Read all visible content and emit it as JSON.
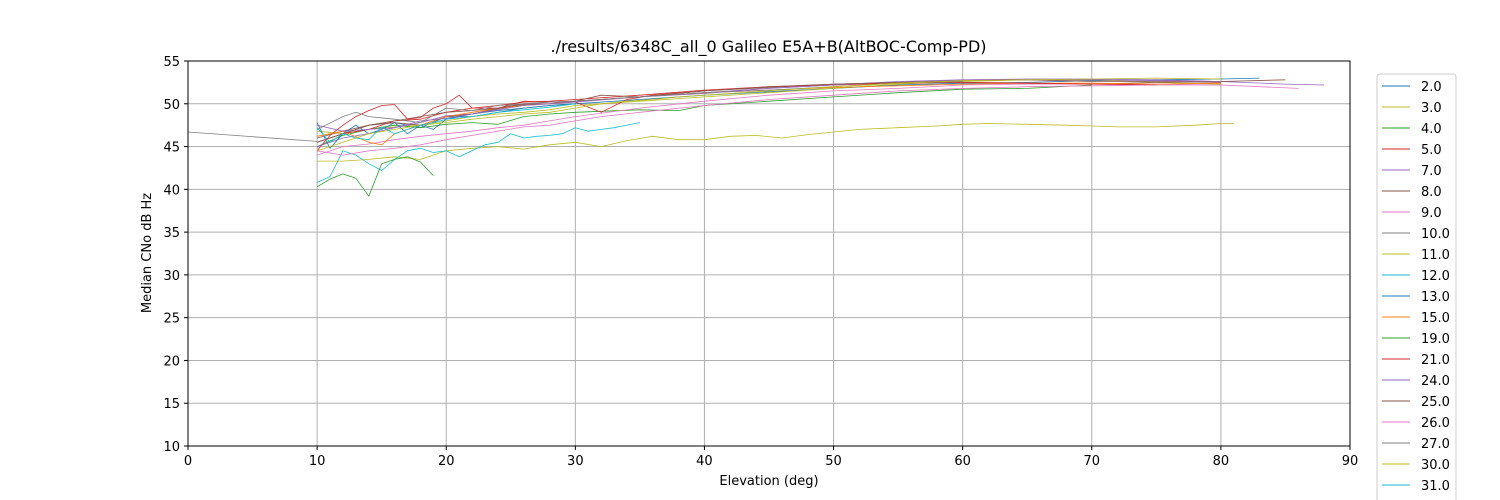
{
  "chart_data": {
    "type": "line",
    "title": "./results/6348C_all_0 Galileo E5A+B(AltBOC-Comp-PD)",
    "xlabel": "Elevation (deg)",
    "ylabel": "Median CNo dB Hz",
    "xlim": [
      0,
      90
    ],
    "ylim": [
      10,
      55
    ],
    "xticks": [
      "0",
      "10",
      "20",
      "30",
      "40",
      "50",
      "60",
      "70",
      "80",
      "90"
    ],
    "yticks": [
      "10",
      "15",
      "20",
      "25",
      "30",
      "35",
      "40",
      "45",
      "50",
      "55"
    ],
    "grid": true,
    "legend_position": "right",
    "series": [
      {
        "name": "2.0",
        "color": "#1f77b4",
        "x": [
          10,
          12,
          14,
          16,
          18,
          20,
          22,
          24,
          26,
          28,
          30,
          35,
          40,
          45,
          50,
          55,
          60,
          65,
          70,
          75,
          80,
          83
        ],
        "y": [
          45.5,
          46.5,
          47.5,
          47.8,
          47.2,
          48.5,
          48.5,
          49,
          49.5,
          49.8,
          50,
          50.5,
          51,
          51.4,
          51.8,
          52.2,
          52.4,
          52.5,
          52.7,
          52.8,
          52.9,
          53
        ]
      },
      {
        "name": "3.0",
        "color": "#bcbd22",
        "x": [
          10,
          12,
          14,
          16,
          18,
          20,
          22,
          24,
          26,
          28,
          30,
          35,
          40,
          45,
          50,
          55,
          60,
          65,
          70,
          75,
          80
        ],
        "y": [
          46.8,
          46.5,
          47,
          47.3,
          47.5,
          48,
          48.5,
          48.8,
          49,
          49.3,
          49.8,
          50.3,
          50.8,
          51.3,
          51.8,
          52.3,
          52.6,
          52.8,
          52.8,
          52.5,
          52.3
        ]
      },
      {
        "name": "4.0",
        "color": "#2ca02c",
        "x": [
          10,
          12,
          14,
          16,
          18,
          20,
          22,
          24,
          26,
          28,
          30,
          35,
          38,
          40,
          45,
          50,
          55,
          60,
          65,
          70
        ],
        "y": [
          45,
          46.3,
          47,
          47.5,
          47.2,
          47.6,
          47.8,
          47.6,
          48.5,
          48.8,
          49,
          49.3,
          49.2,
          49.8,
          50.3,
          50.8,
          51.3,
          51.7,
          51.8,
          52.2
        ]
      },
      {
        "name": "5.0",
        "color": "#d62728",
        "x": [
          10,
          11,
          12,
          13,
          14,
          15,
          16,
          17,
          18,
          19,
          20,
          21,
          22,
          24,
          26,
          28,
          30,
          32,
          34,
          36,
          40
        ],
        "y": [
          44.5,
          46.3,
          47.5,
          48.5,
          49.2,
          49.8,
          49.9,
          48.2,
          48.4,
          49.5,
          50,
          51,
          49.5,
          49.5,
          50.3,
          50.2,
          50.2,
          49,
          50.5,
          51,
          51.5
        ]
      },
      {
        "name": "7.0",
        "color": "#9467bd",
        "x": [
          10,
          12,
          14,
          16,
          18,
          20,
          22,
          24,
          26,
          28,
          30,
          35,
          40,
          45,
          50,
          55,
          60,
          65,
          70,
          75,
          80,
          85,
          88
        ],
        "y": [
          45,
          46,
          46.5,
          47.2,
          47.8,
          48.6,
          48.8,
          49.5,
          50,
          50,
          50.2,
          50.8,
          51.3,
          51.8,
          52.2,
          52.5,
          52.7,
          52.8,
          52.8,
          52.7,
          52.6,
          52.3,
          52.2
        ]
      },
      {
        "name": "8.0",
        "color": "#8c564b",
        "x": [
          10,
          12,
          14,
          16,
          18,
          20,
          22,
          24,
          26,
          28,
          30,
          35,
          40,
          45,
          50,
          55,
          60,
          65,
          70,
          75,
          80,
          85
        ],
        "y": [
          46,
          46.8,
          47.5,
          47.8,
          47.5,
          48.5,
          48.8,
          49.4,
          49.9,
          50,
          50.3,
          50.8,
          51.5,
          51.9,
          52.3,
          52.5,
          52.5,
          52.4,
          52.3,
          52.5,
          52.6,
          52.8
        ]
      },
      {
        "name": "9.0",
        "color": "#e377c2",
        "x": [
          10,
          12,
          14,
          16,
          18,
          20,
          22,
          24,
          26,
          28,
          30,
          35,
          40,
          45,
          50,
          55,
          60,
          65,
          70,
          75,
          80,
          86
        ],
        "y": [
          44,
          45,
          45.3,
          45.8,
          46.2,
          46.5,
          46.8,
          47.2,
          47.5,
          48,
          48.5,
          49.5,
          50.3,
          51,
          51.5,
          51.8,
          52.2,
          52.3,
          52.3,
          52.3,
          52.2,
          51.8
        ]
      },
      {
        "name": "10.0",
        "color": "#7f7f7f",
        "x": [
          0,
          10
        ],
        "y": [
          46.7,
          45.6
        ]
      },
      {
        "name": "11.0",
        "color": "#bcbd22",
        "x": [
          10,
          12,
          14,
          16,
          18,
          20,
          22,
          24,
          26,
          28,
          30,
          32,
          34,
          36,
          38,
          40,
          42,
          44,
          46,
          48,
          50,
          52,
          55,
          58,
          60,
          62,
          65,
          68,
          70,
          72,
          75,
          78,
          80,
          81
        ],
        "y": [
          43.3,
          43.3,
          43.5,
          43.8,
          43.5,
          44.5,
          44.8,
          45,
          44.7,
          45.2,
          45.5,
          45,
          45.7,
          46.2,
          45.8,
          45.8,
          46.2,
          46.3,
          46,
          46.4,
          46.7,
          47,
          47.2,
          47.4,
          47.6,
          47.7,
          47.6,
          47.5,
          47.4,
          47.3,
          47.3,
          47.5,
          47.7,
          47.7
        ]
      },
      {
        "name": "12.0",
        "color": "#17becf",
        "x": [
          10,
          11,
          12,
          13,
          14,
          15,
          16,
          17,
          18,
          19,
          20,
          21,
          22,
          23,
          24,
          25,
          26,
          27,
          28,
          29,
          30,
          31,
          32,
          33,
          35
        ],
        "y": [
          40.8,
          41.5,
          44.5,
          44,
          43,
          42.2,
          43.5,
          44.5,
          44.8,
          44.3,
          44.5,
          43.8,
          44.5,
          45.2,
          45.5,
          46.5,
          46,
          46.2,
          46.3,
          46.5,
          47.2,
          46.8,
          47,
          47.2,
          47.8
        ]
      },
      {
        "name": "13.0",
        "color": "#1f77b4",
        "x": [
          10,
          11,
          12,
          13,
          14,
          15,
          16,
          17,
          18,
          19,
          20,
          22,
          24,
          26,
          28,
          30
        ],
        "y": [
          47.8,
          44.8,
          46.5,
          47.5,
          46.5,
          47,
          47.8,
          46.5,
          47.5,
          47,
          48.2,
          48.8,
          49.2,
          49.5,
          49.8,
          50
        ]
      },
      {
        "name": "15.0",
        "color": "#ff7f0e",
        "x": [
          10,
          12,
          14,
          15,
          16,
          18,
          20,
          22,
          24,
          26,
          28,
          30,
          35,
          40,
          45,
          50,
          55,
          60,
          65,
          70,
          75,
          80
        ],
        "y": [
          46.2,
          46.8,
          45.5,
          45.2,
          46.5,
          47.5,
          48.5,
          49,
          49.5,
          49.8,
          50,
          50.3,
          50.8,
          51.3,
          51.6,
          51.9,
          52.1,
          52.3,
          52.4,
          52.4,
          52.3,
          52.4
        ]
      },
      {
        "name": "19.0",
        "color": "#2ca02c",
        "x": [
          10,
          11,
          12,
          13,
          14,
          15,
          16,
          17,
          18,
          19
        ],
        "y": [
          40.3,
          41.2,
          41.8,
          41.3,
          39.2,
          43,
          43.5,
          43.8,
          43.2,
          41.6
        ]
      },
      {
        "name": "21.0",
        "color": "#d62728",
        "x": [
          10,
          12,
          14,
          16,
          18,
          20,
          22,
          24,
          26,
          28,
          30,
          35,
          40,
          45,
          50,
          55,
          60,
          65,
          70,
          75
        ],
        "y": [
          45.5,
          46.5,
          47,
          48,
          48.2,
          49,
          49.5,
          49.8,
          50.2,
          50.3,
          50.5,
          51,
          51.6,
          52,
          52.2,
          52.4,
          52.5,
          52.4,
          52.3,
          52.2
        ]
      },
      {
        "name": "24.0",
        "color": "#9467bd",
        "x": [
          10,
          12,
          14,
          16,
          18,
          20,
          22,
          24,
          26,
          28,
          30,
          35,
          40,
          45,
          50,
          55,
          60,
          65,
          70,
          75,
          80
        ],
        "y": [
          47.5,
          46.8,
          47,
          47.2,
          48,
          48.3,
          48.8,
          49.3,
          49.8,
          50,
          50.3,
          50.8,
          51.2,
          51.8,
          52.2,
          52.6,
          52.8,
          52.9,
          52.9,
          52.8,
          52.6
        ]
      },
      {
        "name": "25.0",
        "color": "#8c564b",
        "x": [
          10,
          12,
          14,
          16,
          18,
          20,
          22,
          24,
          26,
          28,
          30,
          32,
          35,
          40,
          45,
          50,
          55,
          60,
          65,
          70,
          75,
          80
        ],
        "y": [
          45.5,
          46.5,
          47.5,
          48,
          48.5,
          49,
          49.2,
          49.5,
          50,
          50.2,
          50.3,
          51,
          50.8,
          51.5,
          52,
          52.3,
          52.5,
          52.7,
          52.8,
          52.6,
          52.6,
          52.5
        ]
      },
      {
        "name": "26.0",
        "color": "#e377c2",
        "x": [
          10,
          12,
          14,
          16,
          18,
          20,
          22,
          24,
          26,
          28,
          30,
          32,
          35,
          40,
          45,
          50,
          55,
          60,
          65,
          70,
          75,
          80
        ],
        "y": [
          44.5,
          44,
          44.5,
          44.8,
          45.2,
          45.8,
          46.3,
          46.8,
          47.3,
          47.5,
          48,
          48.5,
          49,
          49.8,
          50.5,
          51,
          51.5,
          51.8,
          52,
          52.1,
          52.2,
          52.2
        ]
      },
      {
        "name": "27.0",
        "color": "#7f7f7f",
        "x": [
          10,
          12,
          13,
          14,
          16,
          18,
          20,
          22,
          24,
          26,
          28,
          30,
          35,
          40,
          45,
          50,
          55,
          60
        ],
        "y": [
          47,
          48.5,
          49,
          48.5,
          48.2,
          47.8,
          49.5,
          49.2,
          49.8,
          50,
          50.2,
          50.3,
          50.8,
          51.3,
          51.6,
          52,
          52.4,
          52.6
        ]
      },
      {
        "name": "30.0",
        "color": "#bcbd22",
        "x": [
          10,
          12,
          14,
          16,
          18,
          20,
          22,
          24,
          26,
          28,
          30,
          32,
          34,
          36,
          38,
          40,
          45,
          50,
          55,
          60,
          65,
          70,
          75,
          80
        ],
        "y": [
          44.5,
          45.5,
          46.5,
          47,
          47.5,
          47.8,
          48.2,
          48.5,
          48.8,
          49,
          49.5,
          50,
          50.3,
          50.5,
          50.8,
          51,
          51.5,
          52,
          52.4,
          52.7,
          52.8,
          52.9,
          53,
          52.9
        ]
      },
      {
        "name": "31.0",
        "color": "#17becf",
        "x": [
          10,
          11,
          12,
          13,
          14,
          15,
          16,
          17,
          18,
          19,
          20,
          22,
          24,
          26,
          28,
          30
        ],
        "y": [
          47.2,
          45.5,
          46.5,
          46,
          45.8,
          47.3,
          46.5,
          47,
          47.5,
          47.8,
          48.2,
          48.5,
          49,
          49.3,
          49.6,
          50
        ]
      }
    ]
  }
}
